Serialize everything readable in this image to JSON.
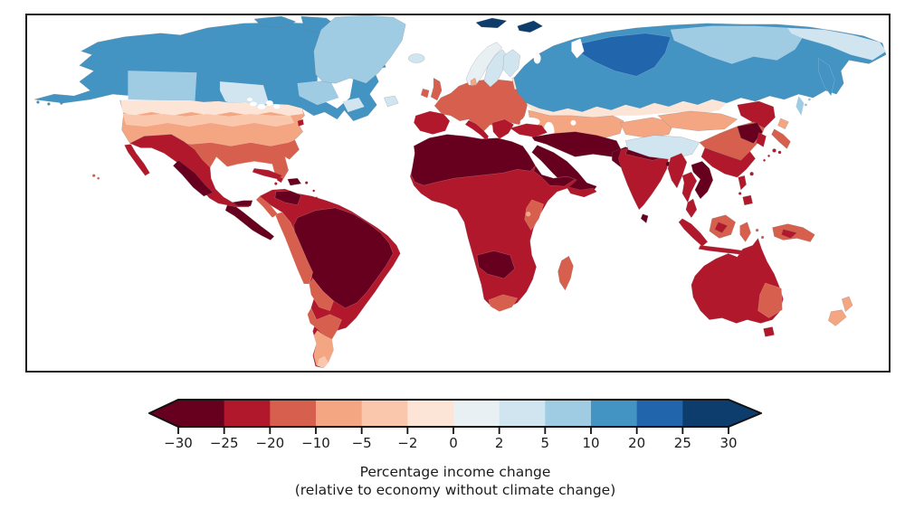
{
  "figure": {
    "background": "#ffffff",
    "frame_color": "#1a1a1a"
  },
  "chart_data": {
    "type": "heatmap",
    "subtype": "choropleth-world-map",
    "projection": "equirectangular",
    "title": "",
    "colorbar": {
      "ticks": [
        -30,
        -25,
        -20,
        -10,
        -5,
        -2,
        0,
        2,
        5,
        10,
        20,
        25,
        30
      ],
      "tick_labels": [
        "−30",
        "−25",
        "−20",
        "−10",
        "−5",
        "−2",
        "0",
        "2",
        "5",
        "10",
        "20",
        "25",
        "30"
      ],
      "segment_colors": [
        "#67001f",
        "#b2182b",
        "#d6604d",
        "#f4a582",
        "#fbc7ac",
        "#fce5d6",
        "#e9f0f4",
        "#d1e5f0",
        "#9fcbe3",
        "#4393c3",
        "#2166ac",
        "#0d3d6d"
      ],
      "under_color": "#67001f",
      "over_color": "#0d3d6d",
      "extend": "both",
      "outline_color": "#111111",
      "label_line1": "Percentage income change",
      "label_line2": "(relative to economy without climate change)"
    },
    "bins": [
      {
        "range": "≤ −25",
        "color": "#67001f"
      },
      {
        "range": "−25 to −20",
        "color": "#b2182b"
      },
      {
        "range": "−20 to −10",
        "color": "#d6604d"
      },
      {
        "range": "−10 to −5",
        "color": "#f4a582"
      },
      {
        "range": "−5 to −2",
        "color": "#fbc7ac"
      },
      {
        "range": "−2 to 0",
        "color": "#fce5d6"
      },
      {
        "range": "0 to 2",
        "color": "#e9f0f4"
      },
      {
        "range": "2 to 5",
        "color": "#d1e5f0"
      },
      {
        "range": "5 to 10",
        "color": "#9fcbe3"
      },
      {
        "range": "10 to 20",
        "color": "#4393c3"
      },
      {
        "range": "20 to 25",
        "color": "#2166ac"
      },
      {
        "range": "≥ 25",
        "color": "#0d3d6d"
      }
    ],
    "regions": {
      "alaska": {
        "label": "Alaska",
        "pct": "10 to 20",
        "color": "#4393c3"
      },
      "canada": {
        "label": "Canada (north)",
        "pct": "10 to 20",
        "color": "#4393c3"
      },
      "canada-arctic-islands": {
        "label": "Canadian Arctic islands",
        "pct": "10 to 20",
        "color": "#4393c3"
      },
      "canada-prairies": {
        "label": "Canada prairies / BC",
        "pct": "5 to 10",
        "color": "#9fcbe3"
      },
      "canada-ontario": {
        "label": "Southern Ontario",
        "pct": "2 to 5",
        "color": "#d1e5f0"
      },
      "canada-quebec-east": {
        "label": "Quebec / Labrador",
        "pct": "5 to 10",
        "color": "#9fcbe3"
      },
      "canada-maritimes": {
        "label": "Maritimes",
        "pct": "2 to 5",
        "color": "#d1e5f0"
      },
      "newfoundland": {
        "label": "Newfoundland",
        "pct": "2 to 5",
        "color": "#d1e5f0"
      },
      "greenland": {
        "label": "Greenland",
        "pct": "5 to 10",
        "color": "#9fcbe3"
      },
      "iceland": {
        "label": "Iceland",
        "pct": "2 to 5",
        "color": "#d1e5f0"
      },
      "svalbard": {
        "label": "Svalbard",
        "pct": "≥ 25",
        "color": "#0d3d6d"
      },
      "novaya-zemlya": {
        "label": "Novaya Zemlya",
        "pct": "≥ 25",
        "color": "#0d3d6d"
      },
      "us": {
        "label": "United States (central)",
        "pct": "−10 to −5",
        "color": "#f4a582"
      },
      "us-north": {
        "label": "United States (northern tier)",
        "pct": "−2 to 0",
        "color": "#fce5d6"
      },
      "us-plains": {
        "label": "United States (upper plains)",
        "pct": "−5 to −2",
        "color": "#fbc7ac"
      },
      "us-south": {
        "label": "United States (south / southeast)",
        "pct": "−20 to −10",
        "color": "#d6604d"
      },
      "us-northeast-metro": {
        "label": "US northeast metro",
        "pct": "−25 to −20",
        "color": "#b2182b"
      },
      "florida-south": {
        "label": "South Florida",
        "pct": "−25 to −20",
        "color": "#b2182b"
      },
      "hawaii": {
        "label": "Hawaii",
        "pct": "−20 to −10",
        "color": "#d6604d"
      },
      "mexico": {
        "label": "Mexico",
        "pct": "−25 to −20",
        "color": "#b2182b"
      },
      "mexico-interior": {
        "label": "Mexico interior",
        "pct": "≤ −25",
        "color": "#67001f"
      },
      "baja-california": {
        "label": "Baja California",
        "pct": "−25 to −20",
        "color": "#b2182b"
      },
      "central-america": {
        "label": "Central America",
        "pct": "≤ −25",
        "color": "#67001f"
      },
      "cuba": {
        "label": "Cuba",
        "pct": "−25 to −20",
        "color": "#b2182b"
      },
      "hispaniola": {
        "label": "Hispaniola",
        "pct": "≤ −25",
        "color": "#67001f"
      },
      "caribbean-islands": {
        "label": "Caribbean islands",
        "pct": "−25 to −20",
        "color": "#b2182b"
      },
      "bahamas": {
        "label": "Bahamas",
        "pct": "−20 to −10",
        "color": "#d6604d"
      },
      "south-america": {
        "label": "South America (ring)",
        "pct": "−25 to −20",
        "color": "#b2182b"
      },
      "amazon-core": {
        "label": "Amazon / central Brazil",
        "pct": "≤ −25",
        "color": "#67001f"
      },
      "venezuela-core": {
        "label": "Venezuela",
        "pct": "≤ −25",
        "color": "#67001f"
      },
      "andes-coast": {
        "label": "Andes / Pacific coast",
        "pct": "−20 to −10",
        "color": "#d6604d"
      },
      "bolivia-paraguay": {
        "label": "Bolivia / Paraguay",
        "pct": "−20 to −10",
        "color": "#d6604d"
      },
      "argentina": {
        "label": "Argentina",
        "pct": "−20 to −10",
        "color": "#d6604d"
      },
      "patagonia": {
        "label": "Patagonia",
        "pct": "−10 to −5",
        "color": "#f4a582"
      },
      "patagonia-tip": {
        "label": "Southern Patagonia",
        "pct": "−5 to −2",
        "color": "#fbc7ac"
      },
      "europe": {
        "label": "Europe (west / central)",
        "pct": "−20 to −10",
        "color": "#d6604d"
      },
      "iberia": {
        "label": "Iberia",
        "pct": "−25 to −20",
        "color": "#b2182b"
      },
      "italy": {
        "label": "Italy",
        "pct": "−25 to −20",
        "color": "#b2182b"
      },
      "balkans-greece": {
        "label": "Balkans / Greece",
        "pct": "−25 to −20",
        "color": "#b2182b"
      },
      "uk": {
        "label": "United Kingdom",
        "pct": "−20 to −10",
        "color": "#d6604d"
      },
      "ireland": {
        "label": "Ireland",
        "pct": "−20 to −10",
        "color": "#d6604d"
      },
      "norway": {
        "label": "Norway",
        "pct": "0 to 2",
        "color": "#e9f0f4"
      },
      "sweden": {
        "label": "Sweden",
        "pct": "2 to 5",
        "color": "#d1e5f0"
      },
      "finland": {
        "label": "Finland",
        "pct": "2 to 5",
        "color": "#d1e5f0"
      },
      "denmark": {
        "label": "Denmark",
        "pct": "−10 to −5",
        "color": "#f4a582"
      },
      "baltics": {
        "label": "Baltic states",
        "pct": "−2 to 0",
        "color": "#fce5d6"
      },
      "russia": {
        "label": "Russia (west / north)",
        "pct": "10 to 20",
        "color": "#4393c3"
      },
      "russia-central-siberia": {
        "label": "Central Siberia",
        "pct": "20 to 25",
        "color": "#2166ac"
      },
      "russia-east-siberia": {
        "label": "Eastern Siberia",
        "pct": "5 to 10",
        "color": "#9fcbe3"
      },
      "russia-far-east": {
        "label": "Russian far east",
        "pct": "2 to 5",
        "color": "#d1e5f0"
      },
      "kamchatka": {
        "label": "Kamchatka",
        "pct": "10 to 20",
        "color": "#4393c3"
      },
      "sakhalin": {
        "label": "Sakhalin",
        "pct": "5 to 10",
        "color": "#9fcbe3"
      },
      "russia-south-band": {
        "label": "Southern Russia transition",
        "pct": "−2 to 0",
        "color": "#fce5d6"
      },
      "kazakhstan": {
        "label": "Kazakhstan / Central Asia",
        "pct": "−10 to −5",
        "color": "#f4a582"
      },
      "turkey": {
        "label": "Turkey",
        "pct": "−25 to −20",
        "color": "#b2182b"
      },
      "middle-east": {
        "label": "Middle East (Iran / Iraq)",
        "pct": "≤ −25",
        "color": "#67001f"
      },
      "arabia": {
        "label": "Arabian peninsula",
        "pct": "≤ −25",
        "color": "#67001f"
      },
      "yemen-oman": {
        "label": "Yemen / Oman",
        "pct": "−25 to −20",
        "color": "#b2182b"
      },
      "pakistan-afghanistan": {
        "label": "Pakistan / Afghanistan",
        "pct": "≤ −25",
        "color": "#67001f"
      },
      "india": {
        "label": "India",
        "pct": "−25 to −20",
        "color": "#b2182b"
      },
      "india-north": {
        "label": "Northern India",
        "pct": "≤ −25",
        "color": "#67001f"
      },
      "bangladesh": {
        "label": "Bangladesh",
        "pct": "≤ −25",
        "color": "#67001f"
      },
      "sri-lanka": {
        "label": "Sri Lanka",
        "pct": "≤ −25",
        "color": "#67001f"
      },
      "tibet": {
        "label": "Tibetan plateau",
        "pct": "2 to 5",
        "color": "#d1e5f0"
      },
      "xinjiang": {
        "label": "Xinjiang",
        "pct": "−10 to −5",
        "color": "#f4a582"
      },
      "mongolia": {
        "label": "Mongolia",
        "pct": "−10 to −5",
        "color": "#f4a582"
      },
      "manchuria": {
        "label": "Manchuria",
        "pct": "−25 to −20",
        "color": "#b2182b"
      },
      "china-north": {
        "label": "Northern China",
        "pct": "−20 to −10",
        "color": "#d6604d"
      },
      "china-east-core": {
        "label": "Eastern China core",
        "pct": "≤ −25",
        "color": "#67001f"
      },
      "china-south": {
        "label": "Southern China",
        "pct": "−25 to −20",
        "color": "#b2182b"
      },
      "korea": {
        "label": "Korea",
        "pct": "−25 to −20",
        "color": "#b2182b"
      },
      "japan-hokkaido": {
        "label": "Hokkaido",
        "pct": "−10 to −5",
        "color": "#f4a582"
      },
      "japan-honshu": {
        "label": "Honshu",
        "pct": "−20 to −10",
        "color": "#d6604d"
      },
      "japan-south": {
        "label": "Kyushu / Shikoku",
        "pct": "−25 to −20",
        "color": "#b2182b"
      },
      "taiwan": {
        "label": "Taiwan",
        "pct": "−25 to −20",
        "color": "#b2182b"
      },
      "myanmar": {
        "label": "Myanmar",
        "pct": "−25 to −20",
        "color": "#b2182b"
      },
      "thailand": {
        "label": "Thailand",
        "pct": "−25 to −20",
        "color": "#b2182b"
      },
      "vietnam-laos": {
        "label": "Vietnam / Laos / Cambodia",
        "pct": "≤ −25",
        "color": "#67001f"
      },
      "malay-peninsula": {
        "label": "Malay peninsula",
        "pct": "−25 to −20",
        "color": "#b2182b"
      },
      "sumatra": {
        "label": "Sumatra",
        "pct": "−25 to −20",
        "color": "#b2182b"
      },
      "borneo": {
        "label": "Borneo",
        "pct": "−20 to −10",
        "color": "#d6604d"
      },
      "borneo-core": {
        "label": "Borneo interior",
        "pct": "−25 to −20",
        "color": "#b2182b"
      },
      "java": {
        "label": "Java",
        "pct": "−25 to −20",
        "color": "#b2182b"
      },
      "sulawesi": {
        "label": "Sulawesi",
        "pct": "−20 to −10",
        "color": "#d6604d"
      },
      "moluccas": {
        "label": "Moluccas",
        "pct": "−20 to −10",
        "color": "#d6604d"
      },
      "new-guinea": {
        "label": "New Guinea",
        "pct": "−20 to −10",
        "color": "#d6604d"
      },
      "new-guinea-core": {
        "label": "New Guinea interior",
        "pct": "−25 to −20",
        "color": "#b2182b"
      },
      "philippines": {
        "label": "Philippines",
        "pct": "−25 to −20",
        "color": "#b2182b"
      },
      "africa": {
        "label": "Sub-Saharan Africa",
        "pct": "−25 to −20",
        "color": "#b2182b"
      },
      "north-africa": {
        "label": "North Africa / Sahara / Sahel",
        "pct": "≤ −25",
        "color": "#67001f"
      },
      "horn-of-africa": {
        "label": "Horn of Africa",
        "pct": "≤ −25",
        "color": "#67001f"
      },
      "east-africa": {
        "label": "East Africa",
        "pct": "−20 to −10",
        "color": "#d6604d"
      },
      "east-africa-spot": {
        "label": "East Africa highlands",
        "pct": "−10 to −5",
        "color": "#f4a582"
      },
      "angola-zambia": {
        "label": "Angola / Zambia",
        "pct": "≤ −25",
        "color": "#67001f"
      },
      "south-africa-coast": {
        "label": "South Africa coast",
        "pct": "−20 to −10",
        "color": "#d6604d"
      },
      "madagascar": {
        "label": "Madagascar",
        "pct": "−20 to −10",
        "color": "#d6604d"
      },
      "australia": {
        "label": "Australia",
        "pct": "−25 to −20",
        "color": "#b2182b"
      },
      "australia-nsw": {
        "label": "New South Wales",
        "pct": "−20 to −10",
        "color": "#d6604d"
      },
      "tasmania": {
        "label": "Tasmania",
        "pct": "−25 to −20",
        "color": "#b2182b"
      },
      "new-zealand": {
        "label": "New Zealand",
        "pct": "−10 to −5",
        "color": "#f4a582"
      }
    }
  }
}
